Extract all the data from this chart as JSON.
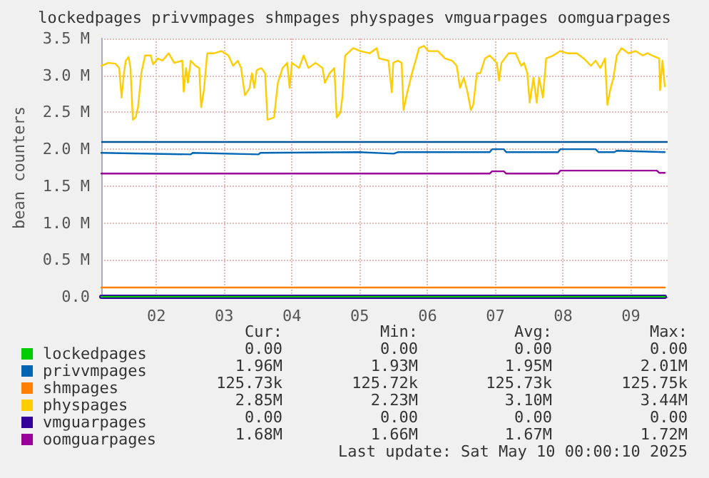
{
  "chart_data": {
    "type": "line",
    "title": "lockedpages privvmpages shmpages physpages vmguarpages oomguarpages",
    "ylabel": "bean counters",
    "xlim": [
      "2025-05-01T16:30",
      "2025-05-10T01:00"
    ],
    "xticks": [
      {
        "value": "2025-05-02T12:00",
        "label": "02"
      },
      {
        "value": "2025-05-03T12:00",
        "label": "03"
      },
      {
        "value": "2025-05-04T12:00",
        "label": "04"
      },
      {
        "value": "2025-05-05T12:00",
        "label": "05"
      },
      {
        "value": "2025-05-06T12:00",
        "label": "06"
      },
      {
        "value": "2025-05-07T12:00",
        "label": "07"
      },
      {
        "value": "2025-05-08T12:00",
        "label": "08"
      },
      {
        "value": "2025-05-09T12:00",
        "label": "09"
      }
    ],
    "ylim": [
      0,
      3500000
    ],
    "yticks": [
      {
        "value": 0,
        "label": "0.0"
      },
      {
        "value": 500000,
        "label": "0.5 M"
      },
      {
        "value": 1000000,
        "label": "1.0 M"
      },
      {
        "value": 1500000,
        "label": "1.5 M"
      },
      {
        "value": 2000000,
        "label": "2.0 M"
      },
      {
        "value": 2500000,
        "label": "2.5 M"
      },
      {
        "value": 3000000,
        "label": "3.0 M"
      },
      {
        "value": 3500000,
        "label": "3.5 M"
      }
    ],
    "grid": true,
    "legend": "bottom left",
    "marker": "none",
    "line_style": "solid",
    "ref_lines": [
      {
        "axis": "y",
        "value": 2100000,
        "color": "#00569c"
      }
    ],
    "series": [
      {
        "name": "lockedpages",
        "color": "#00cc00",
        "x": [
          "2025-05-01T16:30",
          "2025-05-10T00:00"
        ],
        "values": [
          0,
          0
        ]
      },
      {
        "name": "privvmpages",
        "color": "#0066b3",
        "x": [
          "2025-05-01T16:30",
          "2025-05-03T00:10",
          "2025-05-03T00:50",
          "2025-05-04T00:10",
          "2025-05-04T00:50",
          "2025-05-05T12:00",
          "2025-05-06T00:00",
          "2025-05-06T01:30",
          "2025-05-07T10:00",
          "2025-05-07T10:50",
          "2025-05-07T15:00",
          "2025-05-07T15:50",
          "2025-05-08T10:10",
          "2025-05-08T11:00",
          "2025-05-08T23:30",
          "2025-05-09T00:30",
          "2025-05-09T06:10",
          "2025-05-09T07:00",
          "2025-05-10T00:00"
        ],
        "values": [
          1950000,
          1930000,
          1950000,
          1930000,
          1950000,
          1960000,
          1940000,
          1960000,
          1960000,
          2000000,
          2000000,
          1960000,
          1960000,
          2000000,
          2000000,
          1960000,
          1960000,
          1980000,
          1960000
        ]
      },
      {
        "name": "shmpages",
        "color": "#ff8000",
        "x": [
          "2025-05-01T16:30",
          "2025-05-10T00:00"
        ],
        "values": [
          126000,
          126000
        ]
      },
      {
        "name": "physpages",
        "color": "#ffcc00",
        "x": [
          "2025-05-01T16:30",
          "2025-05-01T19:00",
          "2025-05-01T21:30",
          "2025-05-01T22:50",
          "2025-05-01T23:40",
          "2025-05-02T00:30",
          "2025-05-02T01:10",
          "2025-05-02T02:10",
          "2025-05-02T02:50",
          "2025-05-02T03:40",
          "2025-05-02T04:40",
          "2025-05-02T05:30",
          "2025-05-02T06:40",
          "2025-05-02T08:00",
          "2025-05-02T10:00",
          "2025-05-02T10:50",
          "2025-05-02T12:30",
          "2025-05-02T14:10",
          "2025-05-02T16:20",
          "2025-05-02T18:20",
          "2025-05-02T21:10",
          "2025-05-02T21:40",
          "2025-05-02T22:30",
          "2025-05-02T23:10",
          "2025-05-03T00:10",
          "2025-05-03T01:50",
          "2025-05-03T03:10",
          "2025-05-03T03:50",
          "2025-05-03T04:50",
          "2025-05-03T06:00",
          "2025-05-03T08:30",
          "2025-05-03T11:00",
          "2025-05-03T13:30",
          "2025-05-03T15:10",
          "2025-05-03T16:50",
          "2025-05-03T18:00",
          "2025-05-03T19:20",
          "2025-05-03T21:00",
          "2025-05-03T21:50",
          "2025-05-03T22:40",
          "2025-05-03T23:30",
          "2025-05-04T01:10",
          "2025-05-04T02:30",
          "2025-05-04T03:20",
          "2025-05-04T05:40",
          "2025-05-04T07:00",
          "2025-05-04T08:40",
          "2025-05-04T10:20",
          "2025-05-04T11:10",
          "2025-05-04T12:00",
          "2025-05-04T14:30",
          "2025-05-04T16:10",
          "2025-05-04T17:50",
          "2025-05-04T20:20",
          "2025-05-04T22:50",
          "2025-05-04T23:40",
          "2025-05-05T01:20",
          "2025-05-05T03:00",
          "2025-05-05T03:50",
          "2025-05-05T05:10",
          "2025-05-05T05:50",
          "2025-05-05T06:50",
          "2025-05-05T09:40",
          "2025-05-05T12:10",
          "2025-05-05T15:30",
          "2025-05-05T18:00",
          "2025-05-05T18:50",
          "2025-05-05T22:10",
          "2025-05-05T23:20",
          "2025-05-05T23:50",
          "2025-05-06T01:30",
          "2025-05-06T02:50",
          "2025-05-06T03:30",
          "2025-05-06T04:50",
          "2025-05-06T06:30",
          "2025-05-06T09:00",
          "2025-05-06T10:40",
          "2025-05-06T12:20",
          "2025-05-06T15:40",
          "2025-05-06T18:10",
          "2025-05-06T20:40",
          "2025-05-06T22:20",
          "2025-05-06T23:30",
          "2025-05-07T00:50",
          "2025-05-07T02:10",
          "2025-05-07T03:20",
          "2025-05-07T04:10",
          "2025-05-07T05:30",
          "2025-05-07T06:40",
          "2025-05-07T08:20",
          "2025-05-07T10:00",
          "2025-05-07T12:30",
          "2025-05-07T13:20",
          "2025-05-07T14:10",
          "2025-05-07T16:40",
          "2025-05-07T19:10",
          "2025-05-07T21:10",
          "2025-05-07T22:10",
          "2025-05-07T23:20",
          "2025-05-08T00:10",
          "2025-05-08T01:30",
          "2025-05-08T02:40",
          "2025-05-08T03:30",
          "2025-05-08T04:50",
          "2025-05-08T06:00",
          "2025-05-08T08:30",
          "2025-05-08T11:00",
          "2025-05-08T13:30",
          "2025-05-08T16:50",
          "2025-05-08T19:20",
          "2025-05-08T21:50",
          "2025-05-08T23:30",
          "2025-05-09T01:10",
          "2025-05-09T02:50",
          "2025-05-09T03:40",
          "2025-05-09T04:50",
          "2025-05-09T05:50",
          "2025-05-09T07:00",
          "2025-05-09T08:40",
          "2025-05-09T11:10",
          "2025-05-09T13:40",
          "2025-05-09T16:10",
          "2025-05-09T17:50",
          "2025-05-09T19:30",
          "2025-05-09T22:00",
          "2025-05-09T22:20",
          "2025-05-09T23:10",
          "2025-05-10T00:00"
        ],
        "values": [
          3130000,
          3170000,
          3160000,
          3100000,
          2700000,
          3030000,
          3200000,
          3250000,
          3100000,
          2400000,
          2430000,
          2570000,
          3030000,
          3270000,
          3270000,
          3150000,
          3230000,
          3200000,
          3300000,
          3170000,
          3200000,
          2780000,
          3100000,
          2900000,
          3200000,
          3130000,
          3100000,
          2570000,
          2800000,
          3300000,
          3300000,
          3330000,
          3270000,
          3130000,
          3200000,
          3100000,
          2730000,
          2830000,
          3030000,
          2830000,
          3070000,
          3100000,
          3030000,
          2400000,
          2430000,
          2900000,
          3100000,
          3170000,
          2830000,
          3170000,
          3100000,
          3270000,
          3100000,
          3170000,
          3100000,
          2900000,
          3030000,
          3100000,
          2430000,
          2500000,
          2700000,
          3270000,
          3370000,
          3330000,
          3300000,
          3370000,
          3230000,
          3200000,
          2770000,
          3170000,
          3200000,
          3170000,
          2530000,
          2770000,
          3030000,
          3370000,
          3400000,
          3330000,
          3330000,
          3230000,
          3200000,
          3130000,
          2830000,
          2970000,
          2770000,
          2530000,
          2600000,
          3030000,
          3030000,
          3230000,
          3270000,
          3170000,
          2930000,
          3170000,
          3300000,
          3300000,
          3130000,
          3170000,
          3030000,
          2630000,
          2970000,
          2630000,
          2970000,
          2700000,
          3230000,
          3270000,
          3330000,
          3300000,
          3300000,
          3230000,
          3130000,
          3200000,
          3100000,
          3230000,
          2600000,
          2830000,
          2970000,
          3270000,
          3370000,
          3300000,
          3330000,
          3270000,
          3300000,
          3270000,
          3230000,
          2800000,
          3200000,
          2850000
        ]
      },
      {
        "name": "vmguarpages",
        "color": "#330099",
        "x": [
          "2025-05-01T16:30",
          "2025-05-10T00:00"
        ],
        "values": [
          0,
          0
        ]
      },
      {
        "name": "oomguarpages",
        "color": "#990099",
        "x": [
          "2025-05-01T16:30",
          "2025-05-07T10:00",
          "2025-05-07T10:50",
          "2025-05-07T15:00",
          "2025-05-07T15:50",
          "2025-05-08T10:10",
          "2025-05-08T11:00",
          "2025-05-09T21:10",
          "2025-05-09T22:00",
          "2025-05-10T00:00"
        ],
        "values": [
          1670000,
          1670000,
          1700000,
          1700000,
          1670000,
          1670000,
          1710000,
          1710000,
          1680000,
          1680000
        ]
      }
    ],
    "annotations": [
      "Cur:",
      "Min:",
      "Avg:",
      "Max:",
      "0.00",
      "0.00",
      "0.00",
      "0.00",
      "1.96M",
      "1.93M",
      "1.95M",
      "2.01M",
      "125.73k",
      "125.72k",
      "125.73k",
      "125.75k",
      "2.85M",
      "2.23M",
      "3.10M",
      "3.44M",
      "0.00",
      "0.00",
      "0.00",
      "0.00",
      "1.68M",
      "1.66M",
      "1.67M",
      "1.72M",
      "Last update: Sat May 10 00:00:10 2025"
    ]
  }
}
